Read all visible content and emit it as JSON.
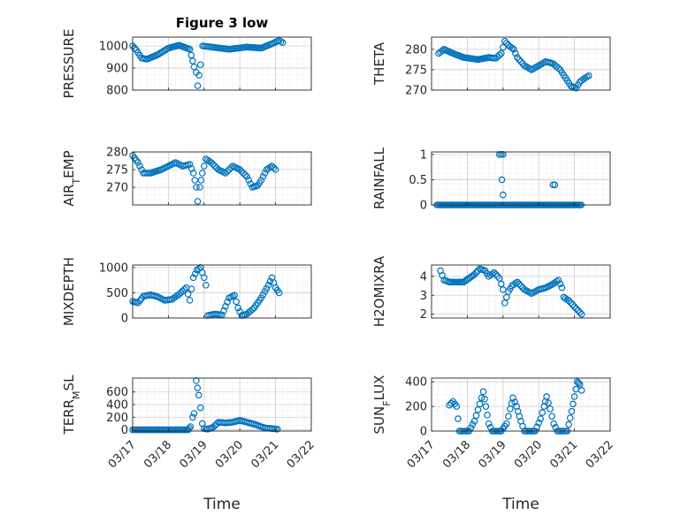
{
  "figure": {
    "title": "Figure 3 low",
    "marker_color": "#0072BD",
    "axes_color": "#262626",
    "grid_color": "#d9d9d9"
  },
  "chart_data": [
    {
      "id": "pressure",
      "type": "scatter",
      "title": "Figure 3 low",
      "ylabel": "PRESSURE",
      "xlabel": "",
      "ylim": [
        800,
        1040
      ],
      "yticks": [
        {
          "v": 800,
          "label": "800"
        },
        {
          "v": 900,
          "label": "900"
        },
        {
          "v": 1000,
          "label": "1000"
        }
      ],
      "xlim": [
        0,
        5
      ],
      "xtick_labels": [],
      "grid": true,
      "grid_minor": true,
      "anchors": [
        [
          0.0,
          1000
        ],
        [
          0.1,
          982
        ],
        [
          0.25,
          945
        ],
        [
          0.4,
          940
        ],
        [
          0.7,
          960
        ],
        [
          1.0,
          990
        ],
        [
          1.3,
          1003
        ],
        [
          1.6,
          985
        ],
        [
          1.72,
          905
        ],
        [
          1.78,
          880
        ],
        [
          1.82,
          820
        ],
        [
          1.9,
          915
        ],
        [
          1.96,
          1000
        ],
        [
          2.2,
          995
        ],
        [
          2.7,
          985
        ],
        [
          3.2,
          995
        ],
        [
          3.6,
          990
        ],
        [
          3.9,
          1010
        ],
        [
          4.1,
          1025
        ],
        [
          4.2,
          1015
        ]
      ],
      "marker": "circle-open"
    },
    {
      "id": "theta",
      "type": "scatter",
      "title": "",
      "ylabel": "THETA",
      "xlabel": "",
      "ylim": [
        270,
        283
      ],
      "yticks": [
        {
          "v": 270,
          "label": "270"
        },
        {
          "v": 275,
          "label": "275"
        },
        {
          "v": 280,
          "label": "280"
        }
      ],
      "xlim": [
        0,
        5
      ],
      "xtick_labels": [],
      "grid": true,
      "grid_minor": true,
      "anchors": [
        [
          0.2,
          279
        ],
        [
          0.35,
          280
        ],
        [
          0.6,
          279
        ],
        [
          0.9,
          278
        ],
        [
          1.3,
          277.5
        ],
        [
          1.6,
          278
        ],
        [
          1.8,
          277.8
        ],
        [
          1.95,
          279
        ],
        [
          2.05,
          282
        ],
        [
          2.15,
          281
        ],
        [
          2.3,
          280
        ],
        [
          2.4,
          278
        ],
        [
          2.6,
          276
        ],
        [
          2.8,
          275
        ],
        [
          3.0,
          276
        ],
        [
          3.2,
          277
        ],
        [
          3.4,
          276.5
        ],
        [
          3.6,
          275
        ],
        [
          3.75,
          273
        ],
        [
          3.9,
          271
        ],
        [
          4.05,
          270.5
        ],
        [
          4.15,
          272
        ],
        [
          4.3,
          273
        ],
        [
          4.4,
          273.5
        ]
      ],
      "marker": "circle-open"
    },
    {
      "id": "air_temp",
      "type": "scatter",
      "title": "",
      "ylabel_main": "AIR",
      "ylabel_sub": "T",
      "ylabel_tail": "EMP",
      "ylim": [
        265,
        280
      ],
      "yticks": [
        {
          "v": 270,
          "label": "270"
        },
        {
          "v": 275,
          "label": "275"
        },
        {
          "v": 280,
          "label": "280"
        }
      ],
      "xlim": [
        0,
        5
      ],
      "xtick_labels": [],
      "grid": true,
      "grid_minor": true,
      "anchors": [
        [
          0.0,
          279
        ],
        [
          0.15,
          277
        ],
        [
          0.3,
          274
        ],
        [
          0.5,
          274
        ],
        [
          0.8,
          275
        ],
        [
          1.0,
          276
        ],
        [
          1.2,
          277
        ],
        [
          1.4,
          276
        ],
        [
          1.6,
          276.5
        ],
        [
          1.7,
          274
        ],
        [
          1.78,
          270
        ],
        [
          1.82,
          266
        ],
        [
          1.88,
          270
        ],
        [
          1.95,
          274
        ],
        [
          2.05,
          278
        ],
        [
          2.2,
          277
        ],
        [
          2.4,
          275
        ],
        [
          2.6,
          274
        ],
        [
          2.8,
          276
        ],
        [
          3.0,
          275
        ],
        [
          3.2,
          273
        ],
        [
          3.35,
          270
        ],
        [
          3.5,
          270.5
        ],
        [
          3.6,
          272
        ],
        [
          3.75,
          275
        ],
        [
          3.9,
          276
        ],
        [
          4.0,
          275
        ]
      ],
      "marker": "circle-open"
    },
    {
      "id": "rainfall",
      "type": "scatter",
      "title": "",
      "ylabel": "RAINFALL",
      "xlabel": "",
      "ylim": [
        0,
        1.05
      ],
      "yticks": [
        {
          "v": 0,
          "label": "0"
        },
        {
          "v": 0.5,
          "label": "0.5"
        },
        {
          "v": 1,
          "label": "1"
        }
      ],
      "xlim": [
        0,
        5
      ],
      "xtick_labels": [],
      "grid": true,
      "grid_minor": true,
      "segments": [
        [
          0.15,
          4.2,
          0
        ]
      ],
      "extra_points": [
        [
          1.9,
          1
        ],
        [
          1.95,
          1
        ],
        [
          2.0,
          1
        ],
        [
          1.97,
          0.5
        ],
        [
          2.0,
          0.2
        ],
        [
          3.4,
          0.4
        ],
        [
          3.45,
          0.4
        ]
      ],
      "marker": "circle-open"
    },
    {
      "id": "mixdepth",
      "type": "scatter",
      "title": "",
      "ylabel": "MIXDEPTH",
      "xlabel": "",
      "ylim": [
        0,
        1050
      ],
      "yticks": [
        {
          "v": 0,
          "label": "0"
        },
        {
          "v": 500,
          "label": "500"
        },
        {
          "v": 1000,
          "label": "1000"
        }
      ],
      "xlim": [
        0,
        5
      ],
      "xtick_labels": [],
      "grid": true,
      "grid_minor": true,
      "anchors": [
        [
          0.0,
          330
        ],
        [
          0.15,
          300
        ],
        [
          0.3,
          430
        ],
        [
          0.5,
          460
        ],
        [
          0.7,
          420
        ],
        [
          0.9,
          350
        ],
        [
          1.1,
          370
        ],
        [
          1.3,
          470
        ],
        [
          1.5,
          600
        ],
        [
          1.6,
          350
        ],
        [
          1.7,
          800
        ],
        [
          1.8,
          950
        ],
        [
          1.9,
          1000
        ],
        [
          2.0,
          800
        ],
        [
          2.05,
          650
        ],
        [
          2.1,
          50
        ],
        [
          2.3,
          80
        ],
        [
          2.5,
          60
        ],
        [
          2.7,
          400
        ],
        [
          2.85,
          450
        ],
        [
          2.95,
          200
        ],
        [
          3.05,
          50
        ],
        [
          3.2,
          80
        ],
        [
          3.4,
          200
        ],
        [
          3.6,
          400
        ],
        [
          3.8,
          650
        ],
        [
          3.9,
          800
        ],
        [
          4.0,
          600
        ],
        [
          4.1,
          500
        ]
      ],
      "marker": "circle-open"
    },
    {
      "id": "h2omixra",
      "type": "scatter",
      "title": "",
      "ylabel": "H2OMIXRA",
      "xlabel": "",
      "ylim": [
        1.8,
        4.6
      ],
      "yticks": [
        {
          "v": 2,
          "label": "2"
        },
        {
          "v": 3,
          "label": "3"
        },
        {
          "v": 4,
          "label": "4"
        }
      ],
      "xlim": [
        0,
        5
      ],
      "xtick_labels": [],
      "grid": true,
      "grid_minor": true,
      "anchors": [
        [
          0.25,
          4.3
        ],
        [
          0.35,
          3.8
        ],
        [
          0.5,
          3.7
        ],
        [
          0.9,
          3.7
        ],
        [
          1.2,
          4.1
        ],
        [
          1.35,
          4.4
        ],
        [
          1.5,
          4.3
        ],
        [
          1.6,
          4.0
        ],
        [
          1.75,
          4.2
        ],
        [
          1.9,
          3.9
        ],
        [
          2.0,
          3.3
        ],
        [
          2.05,
          2.6
        ],
        [
          2.15,
          3.2
        ],
        [
          2.25,
          3.5
        ],
        [
          2.4,
          3.7
        ],
        [
          2.6,
          3.3
        ],
        [
          2.8,
          3.1
        ],
        [
          3.0,
          3.3
        ],
        [
          3.2,
          3.4
        ],
        [
          3.4,
          3.6
        ],
        [
          3.55,
          3.8
        ],
        [
          3.65,
          3.4
        ],
        [
          3.7,
          2.9
        ],
        [
          3.85,
          2.7
        ],
        [
          4.0,
          2.4
        ],
        [
          4.2,
          2.0
        ]
      ],
      "marker": "circle-open"
    },
    {
      "id": "terr_msl",
      "type": "scatter",
      "title": "",
      "ylabel_main": "TERR",
      "ylabel_sub": "M",
      "ylabel_tail": "SL",
      "ylim": [
        -20,
        820
      ],
      "yticks": [
        {
          "v": 0,
          "label": "0"
        },
        {
          "v": 200,
          "label": "200"
        },
        {
          "v": 400,
          "label": "400"
        },
        {
          "v": 600,
          "label": "600"
        }
      ],
      "xlim": [
        0,
        5
      ],
      "xtick_labels": [
        "03/17",
        "03/18",
        "03/19",
        "03/20",
        "03/21",
        "03/22"
      ],
      "xlabel": "Time",
      "grid": true,
      "grid_minor": true,
      "anchors": [
        [
          0.0,
          0
        ],
        [
          1.55,
          0
        ],
        [
          1.62,
          50
        ],
        [
          1.68,
          200
        ],
        [
          1.72,
          260
        ],
        [
          1.78,
          780
        ],
        [
          1.85,
          550
        ],
        [
          1.9,
          350
        ],
        [
          1.95,
          100
        ],
        [
          2.0,
          20
        ],
        [
          2.1,
          10
        ],
        [
          2.25,
          40
        ],
        [
          2.4,
          120
        ],
        [
          2.6,
          110
        ],
        [
          2.8,
          120
        ],
        [
          3.0,
          150
        ],
        [
          3.2,
          120
        ],
        [
          3.4,
          90
        ],
        [
          3.55,
          60
        ],
        [
          3.7,
          30
        ],
        [
          3.9,
          20
        ],
        [
          4.05,
          10
        ]
      ],
      "marker": "circle-open"
    },
    {
      "id": "sun_flux",
      "type": "scatter",
      "title": "",
      "ylabel_main": "SUN",
      "ylabel_sub": "F",
      "ylabel_tail": "LUX",
      "ylim": [
        0,
        430
      ],
      "yticks": [
        {
          "v": 0,
          "label": "0"
        },
        {
          "v": 200,
          "label": "200"
        },
        {
          "v": 400,
          "label": "400"
        }
      ],
      "xlim": [
        0,
        5
      ],
      "xtick_labels": [
        "03/17",
        "03/18",
        "03/19",
        "03/20",
        "03/21",
        "03/22"
      ],
      "xlabel": "Time",
      "grid": true,
      "grid_minor": true,
      "anchors": [
        [
          0.5,
          210
        ],
        [
          0.6,
          240
        ],
        [
          0.7,
          200
        ],
        [
          0.78,
          0
        ],
        [
          1.05,
          0
        ],
        [
          1.2,
          80
        ],
        [
          1.35,
          220
        ],
        [
          1.45,
          320
        ],
        [
          1.52,
          200
        ],
        [
          1.6,
          60
        ],
        [
          1.7,
          0
        ],
        [
          1.95,
          0
        ],
        [
          2.1,
          60
        ],
        [
          2.2,
          180
        ],
        [
          2.28,
          270
        ],
        [
          2.38,
          200
        ],
        [
          2.5,
          80
        ],
        [
          2.6,
          0
        ],
        [
          2.9,
          0
        ],
        [
          3.05,
          100
        ],
        [
          3.15,
          200
        ],
        [
          3.22,
          280
        ],
        [
          3.32,
          180
        ],
        [
          3.42,
          60
        ],
        [
          3.52,
          0
        ],
        [
          3.8,
          0
        ],
        [
          3.92,
          160
        ],
        [
          4.0,
          280
        ],
        [
          4.08,
          400
        ],
        [
          4.15,
          380
        ],
        [
          4.2,
          330
        ]
      ],
      "marker": "circle-open"
    }
  ]
}
